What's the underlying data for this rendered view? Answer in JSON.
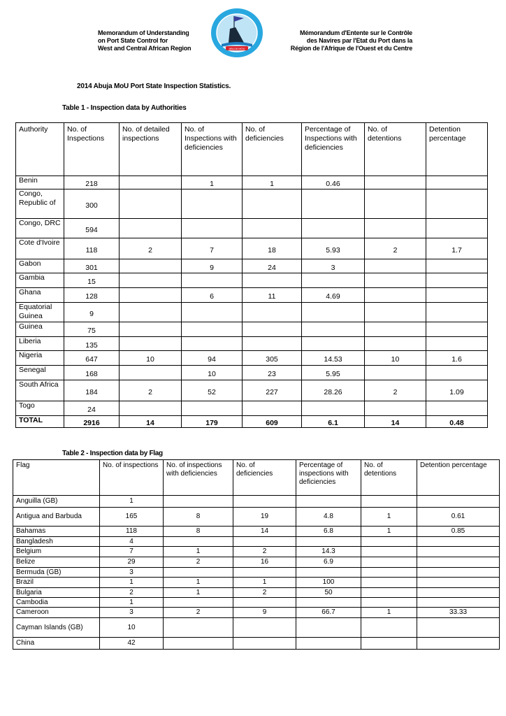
{
  "header": {
    "left_lines": [
      "Memorandum of Understanding",
      "on Port State Control for",
      "West and Central African Region"
    ],
    "right_lines": [
      "Mémorandum d'Entente sur le Contrôle",
      "des Navires par l'Etat du Port dans la",
      "Région de l'Afrique de l'Ouest et du Centre"
    ],
    "logo": {
      "text": "ABUJA MOU",
      "colors": {
        "ring": "#29a8e0",
        "inner": "#bfe4f5",
        "ship": "#1a2a3a",
        "banner": "#d9232e"
      }
    }
  },
  "title": "2014 Abuja MoU Port State Inspection Statistics.",
  "table1": {
    "caption": "Table 1 - Inspection data by Authorities",
    "columns": [
      "Authority",
      "No. of Inspections",
      "No. of detailed inspections",
      "No. of Inspections with deficiencies",
      "No. of deficiencies",
      "Percentage of Inspections with deficiencies",
      "No. of detentions",
      "Detention percentage"
    ],
    "rows": [
      [
        "Benin",
        "218",
        "",
        "1",
        "1",
        "0.46",
        "",
        ""
      ],
      [
        "Congo, Republic of",
        "300",
        "",
        "",
        "",
        "",
        "",
        ""
      ],
      [
        "Congo, DRC",
        "594",
        "",
        "",
        "",
        "",
        "",
        ""
      ],
      [
        "Cote d'Ivoire",
        "118",
        "2",
        "7",
        "18",
        "5.93",
        "2",
        "1.7"
      ],
      [
        "Gabon",
        "301",
        "",
        "9",
        "24",
        "3",
        "",
        ""
      ],
      [
        "Gambia",
        "15",
        "",
        "",
        "",
        "",
        "",
        ""
      ],
      [
        "Ghana",
        "128",
        "",
        "6",
        "11",
        "4.69",
        "",
        ""
      ],
      [
        "Equatorial Guinea",
        "9",
        "",
        "",
        "",
        "",
        "",
        ""
      ],
      [
        "Guinea",
        "75",
        "",
        "",
        "",
        "",
        "",
        ""
      ],
      [
        "Liberia",
        "135",
        "",
        "",
        "",
        "",
        "",
        ""
      ],
      [
        "Nigeria",
        "647",
        "10",
        "94",
        "305",
        "14.53",
        "10",
        "1.6"
      ],
      [
        "Senegal",
        "168",
        "",
        "10",
        "23",
        "5.95",
        "",
        ""
      ],
      [
        "South Africa",
        "184",
        "2",
        "52",
        "227",
        "28.26",
        "2",
        "1.09"
      ],
      [
        "Togo",
        "24",
        "",
        "",
        "",
        "",
        "",
        ""
      ]
    ],
    "total": [
      "TOTAL",
      "2916",
      "14",
      "179",
      "609",
      "6.1",
      "14",
      "0.48"
    ]
  },
  "table2": {
    "caption": "Table 2 - Inspection data by Flag",
    "columns": [
      "Flag",
      "No. of inspections",
      "No. of inspections with deficiencies",
      "No. of deficiencies",
      "Percentage of inspections with deficiencies",
      "No. of detentions",
      "Detention percentage"
    ],
    "rows": [
      [
        "Anguilla (GB)",
        "1",
        "",
        "",
        "",
        "",
        ""
      ],
      [
        "Antigua and Barbuda",
        "165",
        "8",
        "19",
        "4.8",
        "1",
        "0.61"
      ],
      [
        "Bahamas",
        "118",
        "8",
        "14",
        "6.8",
        "1",
        "0.85"
      ],
      [
        "Bangladesh",
        "4",
        "",
        "",
        "",
        "",
        ""
      ],
      [
        "Belgium",
        "7",
        "1",
        "2",
        "14.3",
        "",
        ""
      ],
      [
        "Belize",
        "29",
        "2",
        "16",
        "6.9",
        "",
        ""
      ],
      [
        "Bermuda (GB)",
        "3",
        "",
        "",
        "",
        "",
        ""
      ],
      [
        "Brazil",
        "1",
        "1",
        "1",
        "100",
        "",
        ""
      ],
      [
        "Bulgaria",
        "2",
        "1",
        "2",
        "50",
        "",
        ""
      ],
      [
        "Cambodia",
        "1",
        "",
        "",
        "",
        "",
        ""
      ],
      [
        "Cameroon",
        "3",
        "2",
        "9",
        "66.7",
        "1",
        "33.33"
      ],
      [
        "Cayman Islands (GB)",
        "10",
        "",
        "",
        "",
        "",
        ""
      ],
      [
        "China",
        "42",
        "",
        "",
        "",
        "",
        ""
      ]
    ]
  }
}
